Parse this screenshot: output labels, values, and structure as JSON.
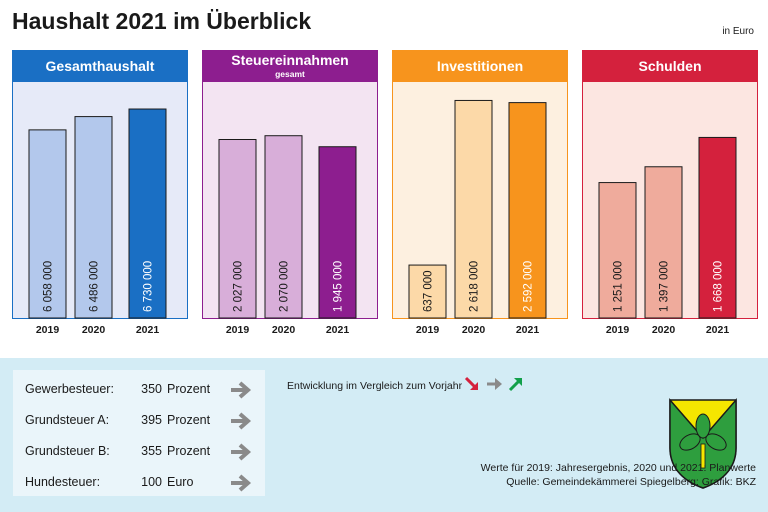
{
  "header": {
    "title": "Haushalt 2021 im Überblick",
    "unit": "in Euro"
  },
  "colors": {
    "gesamt": {
      "header": "#1a6fc4",
      "panel": "#e6eaf8",
      "bar_light": "#b3c8ec",
      "bar_dark": "#1a6fc4"
    },
    "steuer": {
      "header": "#8d1e8f",
      "panel": "#f3e4f2",
      "bar_light": "#d8aed9",
      "bar_dark": "#8d1e8f"
    },
    "invest": {
      "header": "#f7941d",
      "panel": "#fdf0e0",
      "bar_light": "#fcd9a8",
      "bar_dark": "#f7941d"
    },
    "schulden": {
      "header": "#d4213d",
      "panel": "#fce6e1",
      "bar_light": "#efab9c",
      "bar_dark": "#d4213d"
    }
  },
  "chart_data": [
    {
      "type": "bar",
      "title": "Gesamthaushalt",
      "subtitle": "",
      "categories": [
        "2019",
        "2020",
        "2021"
      ],
      "values": [
        6058000,
        6486000,
        6730000
      ],
      "value_labels": [
        "6 058 000",
        "6 486 000",
        "6 730 000"
      ],
      "ylim": [
        0,
        7600000
      ]
    },
    {
      "type": "bar",
      "title": "Steuereinnahmen",
      "subtitle": "gesamt",
      "categories": [
        "2019",
        "2020",
        "2021"
      ],
      "values": [
        2027000,
        2070000,
        1945000
      ],
      "value_labels": [
        "2 027 000",
        "2 070 000",
        "1 945 000"
      ],
      "ylim": [
        0,
        2680000
      ]
    },
    {
      "type": "bar",
      "title": "Investitionen",
      "subtitle": "",
      "categories": [
        "2019",
        "2020",
        "2021"
      ],
      "values": [
        637000,
        2618000,
        2592000
      ],
      "value_labels": [
        "637 000",
        "2 618 000",
        "2 592 000"
      ],
      "ylim": [
        0,
        2840000
      ]
    },
    {
      "type": "bar",
      "title": "Schulden",
      "subtitle": "",
      "categories": [
        "2019",
        "2020",
        "2021"
      ],
      "values": [
        1251000,
        1397000,
        1668000
      ],
      "value_labels": [
        "1 251 000",
        "1 397 000",
        "1 668 000"
      ],
      "ylim": [
        0,
        2180000
      ]
    }
  ],
  "taxes": [
    {
      "name": "Gewerbesteuer:",
      "value": "350",
      "unit": "Prozent"
    },
    {
      "name": "Grundsteuer A:",
      "value": "395",
      "unit": "Prozent"
    },
    {
      "name": "Grundsteuer B:",
      "value": "355",
      "unit": "Prozent"
    },
    {
      "name": "Hundesteuer:",
      "value": "100",
      "unit": "Euro"
    }
  ],
  "legend": {
    "text": "Entwicklung im Vergleich zum Vorjahr",
    "arrows": [
      "down-right-arrow-icon",
      "right-arrow-icon",
      "up-right-arrow-icon"
    ]
  },
  "notes": {
    "line1": "Werte für 2019: Jahresergebnis, 2020 und 2021: Planwerte",
    "line2": "Quelle: Gemeindekämmerei Spiegelberg; Grafik: BKZ"
  }
}
